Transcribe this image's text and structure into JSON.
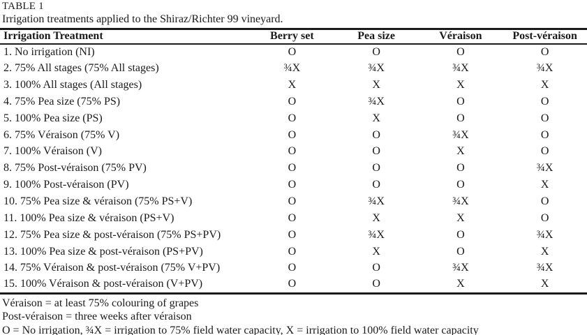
{
  "page": {
    "table_label": "TABLE 1",
    "caption": "Irrigation treatments applied to the Shiraz/Richter 99 vineyard."
  },
  "table": {
    "columns": [
      "Irrigation Treatment",
      "Berry set",
      "Pea size",
      "Véraison",
      "Post-véraison"
    ],
    "rows": [
      {
        "treatment": "1. No irrigation (NI)",
        "values": [
          "O",
          "O",
          "O",
          "O"
        ]
      },
      {
        "treatment": "2. 75% All stages (75% All stages)",
        "values": [
          "¾X",
          "¾X",
          "¾X",
          "¾X"
        ]
      },
      {
        "treatment": "3. 100% All stages (All stages)",
        "values": [
          "X",
          "X",
          "X",
          "X"
        ]
      },
      {
        "treatment": "4. 75% Pea size (75% PS)",
        "values": [
          "O",
          "¾X",
          "O",
          "O"
        ]
      },
      {
        "treatment": "5. 100% Pea size (PS)",
        "values": [
          "O",
          "X",
          "O",
          "O"
        ]
      },
      {
        "treatment": "6. 75% Véraison (75% V)",
        "values": [
          "O",
          "O",
          "¾X",
          "O"
        ]
      },
      {
        "treatment": "7. 100% Véraison (V)",
        "values": [
          "O",
          "O",
          "X",
          "O"
        ]
      },
      {
        "treatment": "8. 75% Post-véraison (75% PV)",
        "values": [
          "O",
          "O",
          "O",
          "¾X"
        ]
      },
      {
        "treatment": "9. 100% Post-véraison (PV)",
        "values": [
          "O",
          "O",
          "O",
          "X"
        ]
      },
      {
        "treatment": "10. 75% Pea size & véraison (75% PS+V)",
        "values": [
          "O",
          "¾X",
          "¾X",
          "O"
        ]
      },
      {
        "treatment": "11. 100% Pea size & véraison (PS+V)",
        "values": [
          "O",
          "X",
          "X",
          "O"
        ]
      },
      {
        "treatment": "12. 75% Pea size & post-véraison (75% PS+PV)",
        "values": [
          "O",
          "¾X",
          "O",
          "¾X"
        ]
      },
      {
        "treatment": "13. 100% Pea size & post-véraison (PS+PV)",
        "values": [
          "O",
          "X",
          "O",
          "X"
        ]
      },
      {
        "treatment": "14. 75% Véraison & post-véraison (75% V+PV)",
        "values": [
          "O",
          "O",
          "¾X",
          "¾X"
        ]
      },
      {
        "treatment": "15. 100% Véraison & post-véraison (V+PV)",
        "values": [
          "O",
          "O",
          "X",
          "X"
        ]
      }
    ]
  },
  "footnotes": [
    "Véraison = at least 75% colouring of grapes",
    "Post-véraison = three weeks after véraison",
    "O = No irrigation, ¾X = irrigation to 75% field water capacity, X = irrigation to 100% field water capacity"
  ],
  "colors": {
    "text": "#1a1a1a",
    "border": "#1b1b1b",
    "background": "#ffffff"
  }
}
